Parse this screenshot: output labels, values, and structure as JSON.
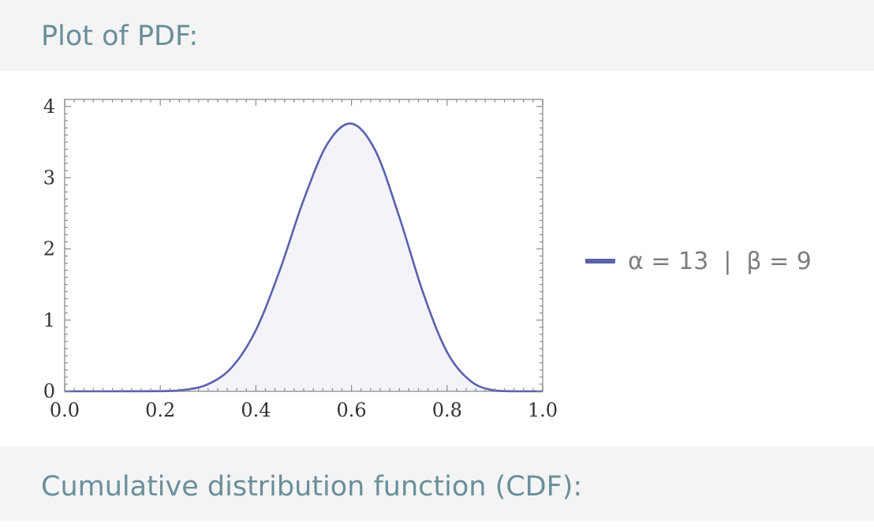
{
  "sections": {
    "pdf_title": "Plot of PDF:",
    "cdf_title": "Cumulative distribution function (CDF):"
  },
  "legend": {
    "label": "α = 13  |  β = 9",
    "color": "#5862ad"
  },
  "chart_data": {
    "type": "area",
    "title": "",
    "xlabel": "",
    "ylabel": "",
    "xlim": [
      0.0,
      1.0
    ],
    "ylim": [
      0,
      4.1
    ],
    "x_ticks": [
      "0.0",
      "0.2",
      "0.4",
      "0.6",
      "0.8",
      "1.0"
    ],
    "y_ticks": [
      "0",
      "1",
      "2",
      "3",
      "4"
    ],
    "grid": false,
    "legend_position": "right",
    "series": [
      {
        "name": "α = 13  |  β = 9",
        "color": "#5862ad",
        "fill": "#f4f3f9",
        "x": [
          0.0,
          0.1,
          0.2,
          0.25,
          0.3,
          0.35,
          0.4,
          0.45,
          0.5,
          0.55,
          0.6,
          0.65,
          0.7,
          0.75,
          0.8,
          0.85,
          0.9,
          0.95,
          1.0
        ],
        "y": [
          0.0,
          0.0,
          0.002,
          0.02,
          0.1,
          0.34,
          0.86,
          1.7,
          2.69,
          3.48,
          3.76,
          3.38,
          2.45,
          1.38,
          0.55,
          0.14,
          0.01,
          0.0,
          0.0
        ]
      }
    ]
  }
}
